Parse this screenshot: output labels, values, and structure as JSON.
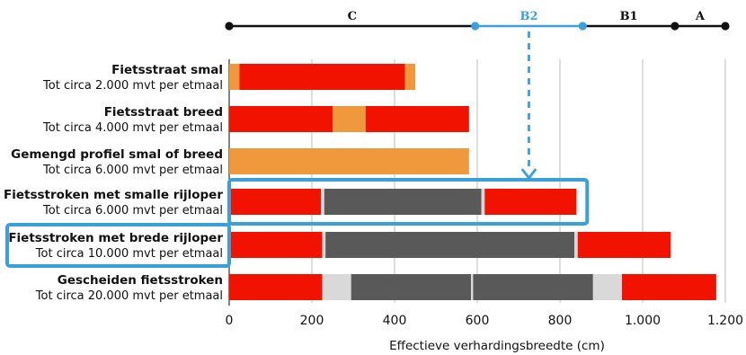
{
  "chart_data": {
    "type": "bar",
    "xlabel": "Effectieve verhardingsbreedte (cm)",
    "xlim": [
      0,
      1200
    ],
    "x_ticks": [
      "0",
      "200",
      "400",
      "600",
      "800",
      "1.000",
      "1.200"
    ],
    "x_tick_values": [
      0,
      200,
      400,
      600,
      800,
      1000,
      1200
    ],
    "grid": true,
    "colors": {
      "red": "#f21200",
      "orange": "#f0993c",
      "dark_gray": "#595959",
      "light_gray": "#d9d9d9",
      "blue": "#3aa0dc",
      "black": "#111111"
    },
    "rows": [
      {
        "title": "Fietsstraat smal",
        "subtitle": "Tot circa 2.000 mvt per etmaal",
        "highlight": false,
        "segments": [
          {
            "from": 0,
            "to": 25,
            "color": "orange"
          },
          {
            "from": 25,
            "to": 425,
            "color": "red"
          },
          {
            "from": 425,
            "to": 450,
            "color": "orange"
          }
        ]
      },
      {
        "title": "Fietsstraat breed",
        "subtitle": "Tot circa 4.000 mvt per etmaal",
        "highlight": false,
        "segments": [
          {
            "from": 0,
            "to": 250,
            "color": "red"
          },
          {
            "from": 250,
            "to": 330,
            "color": "orange"
          },
          {
            "from": 330,
            "to": 580,
            "color": "red"
          }
        ]
      },
      {
        "title": "Gemengd profiel smal of breed",
        "subtitle": "Tot circa 6.000 mvt per etmaal",
        "highlight": false,
        "segments": [
          {
            "from": 0,
            "to": 580,
            "color": "orange"
          }
        ]
      },
      {
        "title": "Fietsstroken met  smalle rijloper",
        "subtitle": "Tot circa 6.000 mvt per etmaal",
        "highlight": true,
        "segments": [
          {
            "from": 0,
            "to": 222,
            "color": "red"
          },
          {
            "from": 222,
            "to": 230,
            "color": "light_gray"
          },
          {
            "from": 230,
            "to": 610,
            "color": "dark_gray"
          },
          {
            "from": 610,
            "to": 618,
            "color": "light_gray"
          },
          {
            "from": 618,
            "to": 840,
            "color": "red"
          }
        ]
      },
      {
        "title": "Fietsstroken met  brede rijloper",
        "subtitle": "Tot circa 10.000 mvt per etmaal",
        "highlight": true,
        "segments": [
          {
            "from": 0,
            "to": 225,
            "color": "red"
          },
          {
            "from": 225,
            "to": 233,
            "color": "light_gray"
          },
          {
            "from": 233,
            "to": 835,
            "color": "dark_gray"
          },
          {
            "from": 835,
            "to": 843,
            "color": "light_gray"
          },
          {
            "from": 843,
            "to": 1068,
            "color": "red"
          }
        ]
      },
      {
        "title": "Gescheiden fietsstroken",
        "subtitle": "Tot circa 20.000 mvt per etmaal",
        "highlight": false,
        "segments": [
          {
            "from": 0,
            "to": 225,
            "color": "red"
          },
          {
            "from": 225,
            "to": 295,
            "color": "light_gray"
          },
          {
            "from": 295,
            "to": 585,
            "color": "dark_gray"
          },
          {
            "from": 585,
            "to": 590,
            "color": "light_gray"
          },
          {
            "from": 590,
            "to": 880,
            "color": "dark_gray"
          },
          {
            "from": 880,
            "to": 950,
            "color": "light_gray"
          },
          {
            "from": 950,
            "to": 1178,
            "color": "red"
          }
        ]
      }
    ],
    "width_classes": {
      "line_start": 0,
      "line_end": 1200,
      "points": [
        0,
        595,
        855,
        1078,
        1200
      ],
      "classes": [
        {
          "label": "C",
          "from": 0,
          "to": 595,
          "color": "black"
        },
        {
          "label": "B2",
          "from": 595,
          "to": 855,
          "color": "blue"
        },
        {
          "label": "B1",
          "from": 855,
          "to": 1078,
          "color": "black"
        },
        {
          "label": "A",
          "from": 1078,
          "to": 1200,
          "color": "black"
        }
      ],
      "indicator": {
        "at": 725,
        "target_row": 3,
        "color": "blue"
      }
    }
  }
}
